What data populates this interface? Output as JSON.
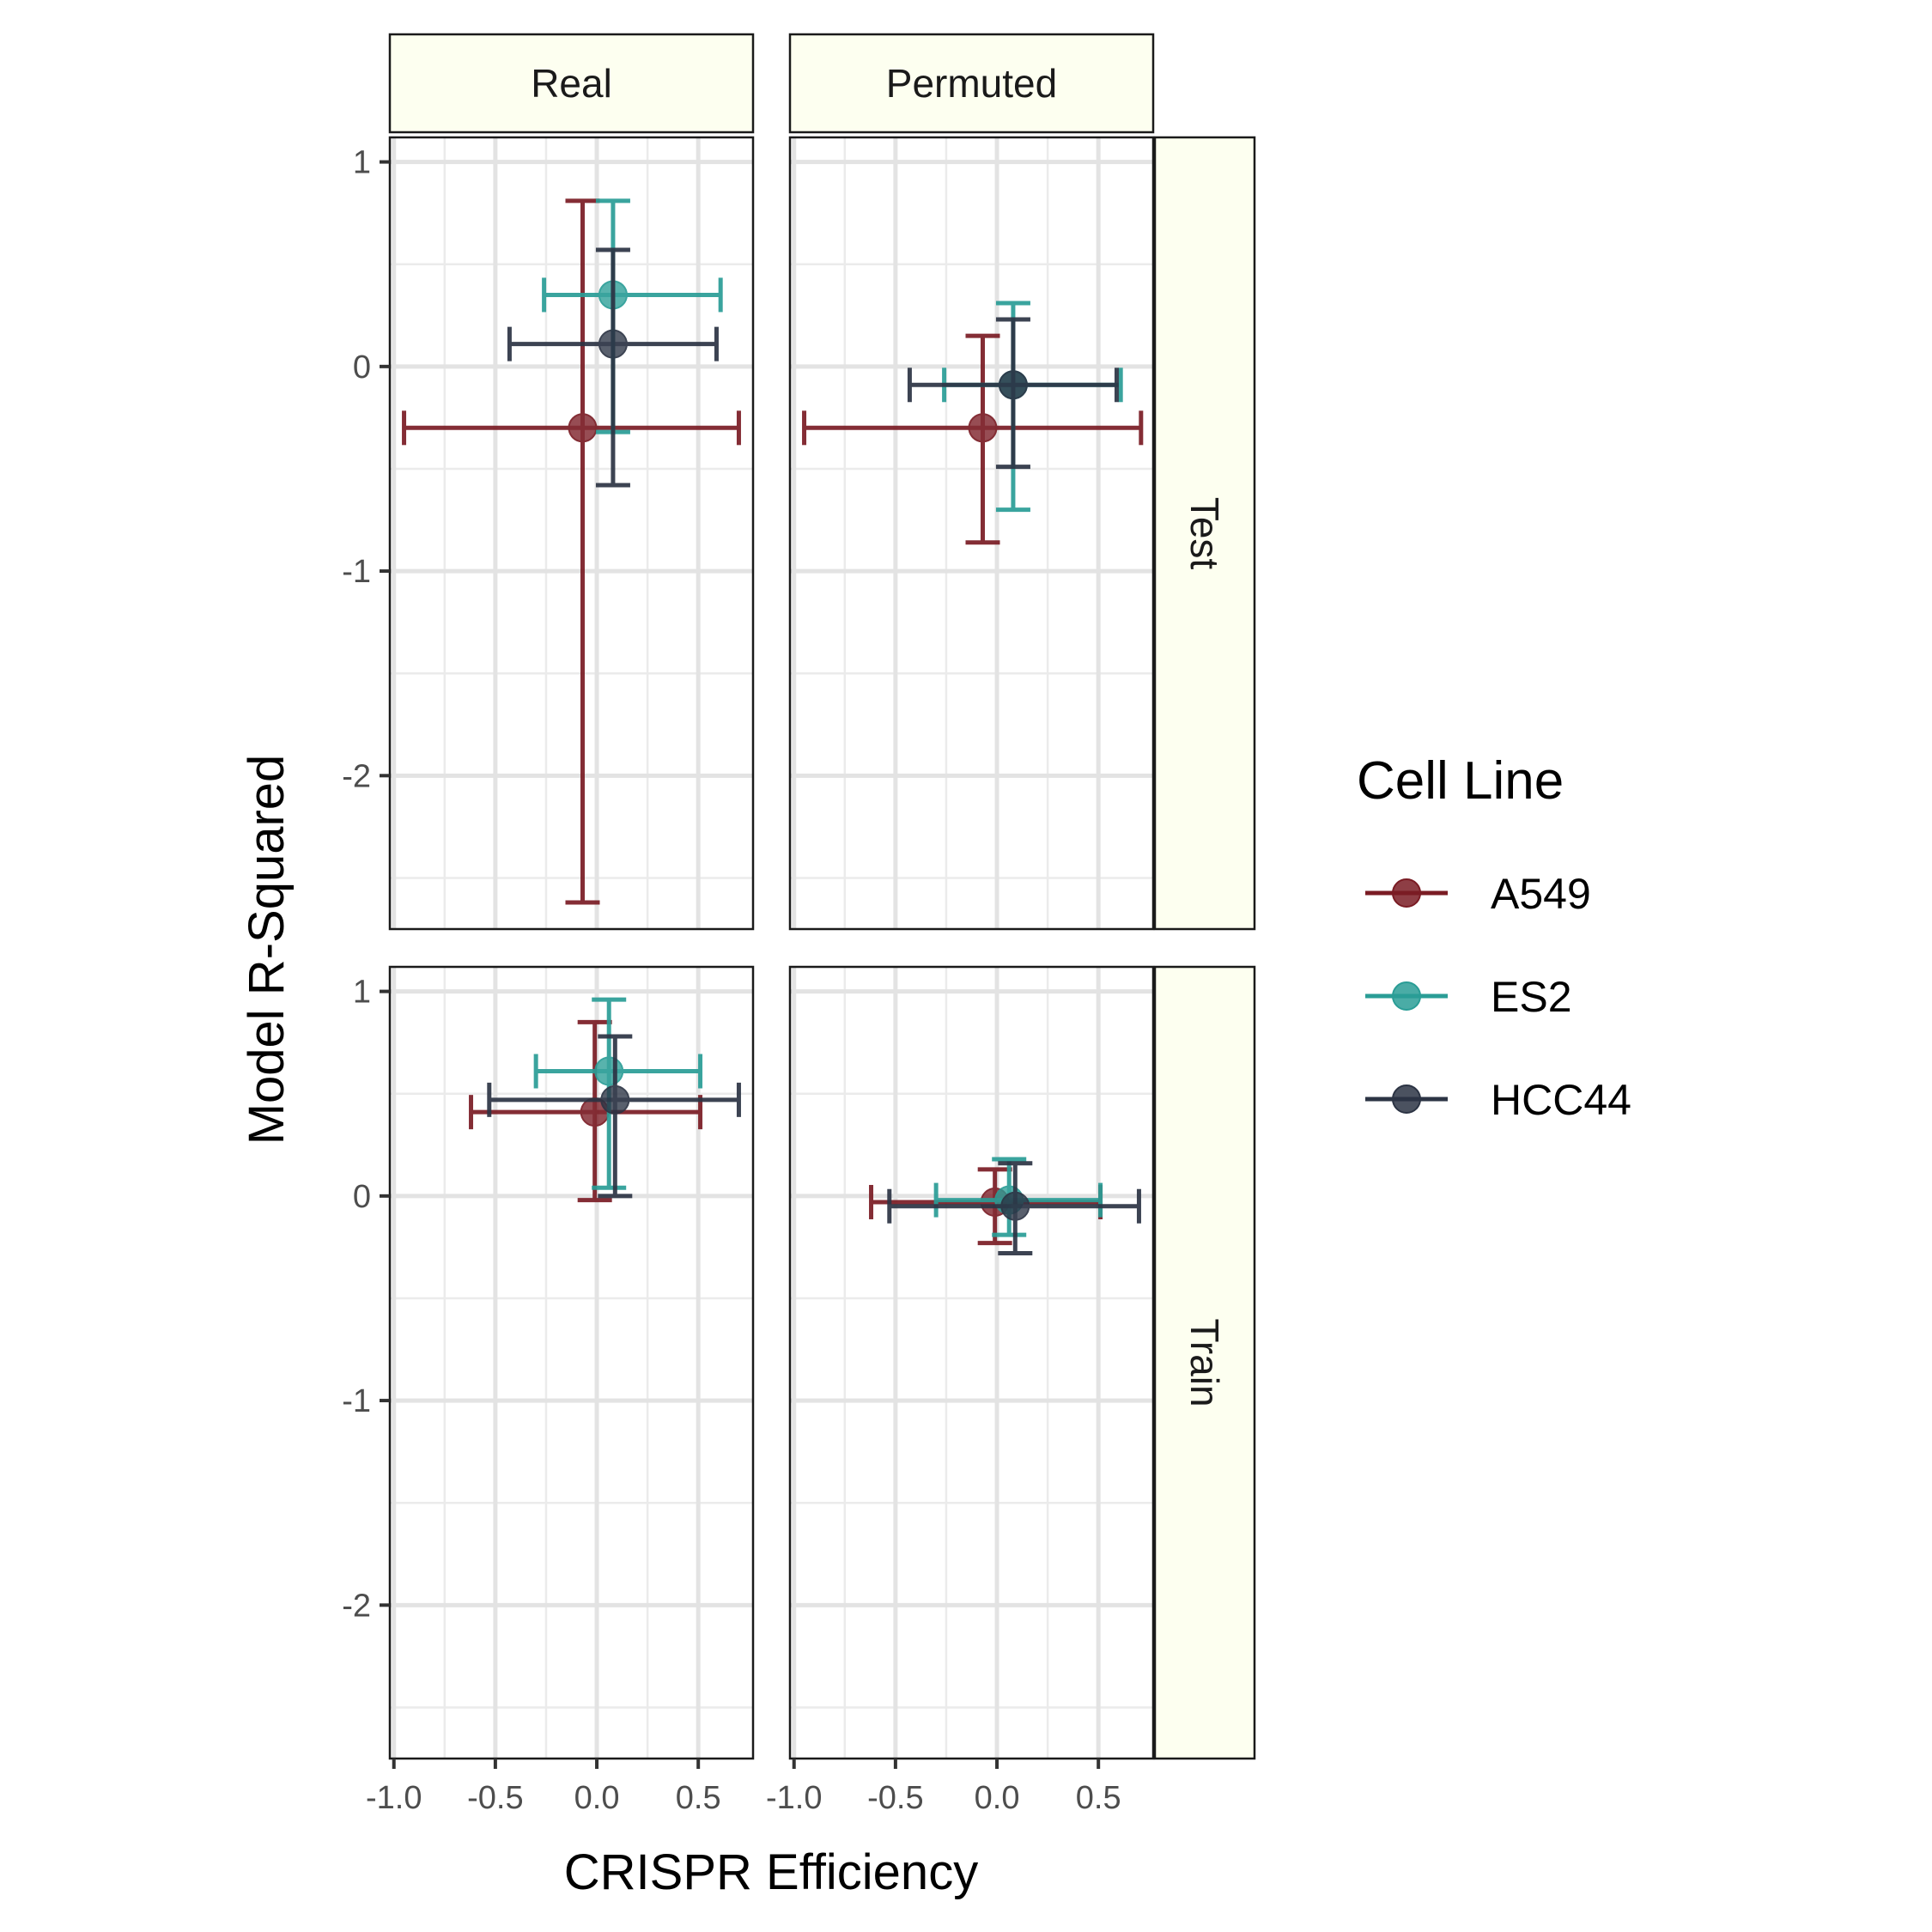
{
  "chart_data": {
    "type": "scatter",
    "xlabel": "CRISPR Efficiency",
    "ylabel": "Model R-Squared",
    "xlim": [
      -1.02,
      0.77
    ],
    "ylim": [
      -2.75,
      1.12
    ],
    "x_ticks": [
      -1.0,
      -0.5,
      0.0,
      0.5
    ],
    "x_tick_labels": [
      "-1.0",
      "-0.5",
      "0.0",
      "0.5"
    ],
    "y_ticks": [
      1,
      0,
      -1,
      -2
    ],
    "y_tick_labels": [
      "1",
      "0",
      "-1",
      "-2"
    ],
    "facet_columns": [
      "Real",
      "Permuted"
    ],
    "facet_rows": [
      "Test",
      "Train"
    ],
    "grid": true,
    "legend": {
      "title": "Cell Line",
      "position": "right",
      "entries": [
        "A549",
        "ES2",
        "HCC44"
      ]
    },
    "series": [
      {
        "name": "A549",
        "color": "#7a1c24",
        "points": [
          {
            "col": "Real",
            "row": "Test",
            "x": -0.07,
            "y": -0.3,
            "xmin": -0.95,
            "xmax": 0.7,
            "ymin": -2.62,
            "ymax": 0.81
          },
          {
            "col": "Permuted",
            "row": "Test",
            "x": -0.07,
            "y": -0.3,
            "xmin": -0.95,
            "xmax": 0.71,
            "ymin": -0.86,
            "ymax": 0.15
          },
          {
            "col": "Real",
            "row": "Train",
            "x": -0.01,
            "y": 0.41,
            "xmin": -0.62,
            "xmax": 0.51,
            "ymin": -0.02,
            "ymax": 0.85
          },
          {
            "col": "Permuted",
            "row": "Train",
            "x": -0.01,
            "y": -0.03,
            "xmin": -0.62,
            "xmax": 0.51,
            "ymin": -0.23,
            "ymax": 0.13
          }
        ]
      },
      {
        "name": "ES2",
        "color": "#2a9d96",
        "points": [
          {
            "col": "Real",
            "row": "Test",
            "x": 0.08,
            "y": 0.35,
            "xmin": -0.26,
            "xmax": 0.61,
            "ymin": -0.32,
            "ymax": 0.81
          },
          {
            "col": "Permuted",
            "row": "Test",
            "x": 0.08,
            "y": -0.09,
            "xmin": -0.26,
            "xmax": 0.61,
            "ymin": -0.7,
            "ymax": 0.31
          },
          {
            "col": "Real",
            "row": "Train",
            "x": 0.06,
            "y": 0.61,
            "xmin": -0.3,
            "xmax": 0.51,
            "ymin": 0.04,
            "ymax": 0.96
          },
          {
            "col": "Permuted",
            "row": "Train",
            "x": 0.06,
            "y": -0.02,
            "xmin": -0.3,
            "xmax": 0.51,
            "ymin": -0.19,
            "ymax": 0.18
          }
        ]
      },
      {
        "name": "HCC44",
        "color": "#2c3444",
        "points": [
          {
            "col": "Real",
            "row": "Test",
            "x": 0.08,
            "y": 0.11,
            "xmin": -0.43,
            "xmax": 0.59,
            "ymin": -0.58,
            "ymax": 0.57
          },
          {
            "col": "Permuted",
            "row": "Test",
            "x": 0.08,
            "y": -0.09,
            "xmin": -0.43,
            "xmax": 0.59,
            "ymin": -0.49,
            "ymax": 0.23
          },
          {
            "col": "Real",
            "row": "Train",
            "x": 0.09,
            "y": 0.47,
            "xmin": -0.53,
            "xmax": 0.7,
            "ymin": 0.0,
            "ymax": 0.78
          },
          {
            "col": "Permuted",
            "row": "Train",
            "x": 0.09,
            "y": -0.05,
            "xmin": -0.53,
            "xmax": 0.7,
            "ymin": -0.28,
            "ymax": 0.16
          }
        ]
      }
    ]
  }
}
